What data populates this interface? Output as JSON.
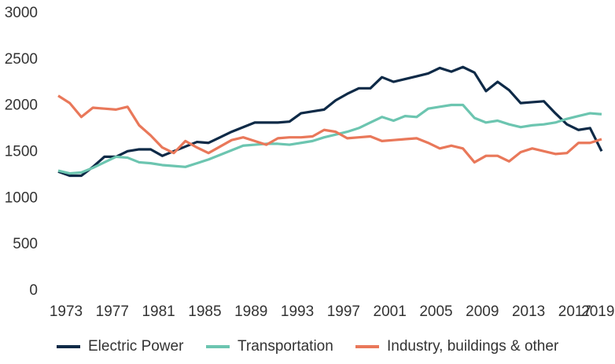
{
  "chart_data": {
    "type": "line",
    "x": [
      1973,
      1974,
      1975,
      1976,
      1977,
      1978,
      1979,
      1980,
      1981,
      1982,
      1983,
      1984,
      1985,
      1986,
      1987,
      1988,
      1989,
      1990,
      1991,
      1992,
      1993,
      1994,
      1995,
      1996,
      1997,
      1998,
      1999,
      2000,
      2001,
      2002,
      2003,
      2004,
      2005,
      2006,
      2007,
      2008,
      2009,
      2010,
      2011,
      2012,
      2013,
      2014,
      2015,
      2016,
      2017,
      2018,
      2019,
      2020
    ],
    "series": [
      {
        "name": "Electric Power",
        "color": "#0e2a47",
        "values": [
          1290,
          1245,
          1245,
          1340,
          1450,
          1450,
          1510,
          1530,
          1530,
          1460,
          1510,
          1560,
          1610,
          1600,
          1660,
          1720,
          1770,
          1820,
          1820,
          1820,
          1830,
          1920,
          1940,
          1960,
          2060,
          2130,
          2190,
          2190,
          2310,
          2260,
          2290,
          2320,
          2350,
          2410,
          2370,
          2420,
          2360,
          2160,
          2260,
          2170,
          2030,
          2040,
          2050,
          1920,
          1800,
          1740,
          1760,
          1510
        ]
      },
      {
        "name": "Transportation",
        "color": "#6cc5b0",
        "values": [
          1300,
          1270,
          1280,
          1330,
          1390,
          1450,
          1440,
          1390,
          1380,
          1360,
          1350,
          1340,
          1380,
          1420,
          1470,
          1520,
          1570,
          1580,
          1590,
          1590,
          1580,
          1600,
          1620,
          1660,
          1690,
          1720,
          1760,
          1820,
          1880,
          1840,
          1890,
          1880,
          1970,
          1990,
          2010,
          2010,
          1870,
          1820,
          1840,
          1800,
          1770,
          1790,
          1800,
          1820,
          1860,
          1890,
          1920,
          1910
        ]
      },
      {
        "name": "Industry, buildings & other",
        "color": "#e9785a",
        "values": [
          2110,
          2030,
          1880,
          1980,
          1970,
          1960,
          1990,
          1790,
          1680,
          1550,
          1490,
          1620,
          1550,
          1490,
          1560,
          1630,
          1660,
          1620,
          1580,
          1650,
          1660,
          1660,
          1670,
          1740,
          1720,
          1650,
          1660,
          1670,
          1620,
          1630,
          1640,
          1650,
          1600,
          1540,
          1570,
          1540,
          1390,
          1460,
          1460,
          1400,
          1500,
          1540,
          1510,
          1480,
          1490,
          1600,
          1600,
          1640
        ]
      }
    ],
    "xlim": [
      1973,
      2020
    ],
    "xticks": [
      1973,
      1977,
      1981,
      1985,
      1989,
      1993,
      1997,
      2001,
      2005,
      2009,
      2013,
      2017,
      2019
    ],
    "ylim": [
      0,
      3000
    ],
    "yticks": [
      0,
      500,
      1000,
      1500,
      2000,
      2500,
      3000
    ],
    "grid": false,
    "legend": "bottom"
  }
}
